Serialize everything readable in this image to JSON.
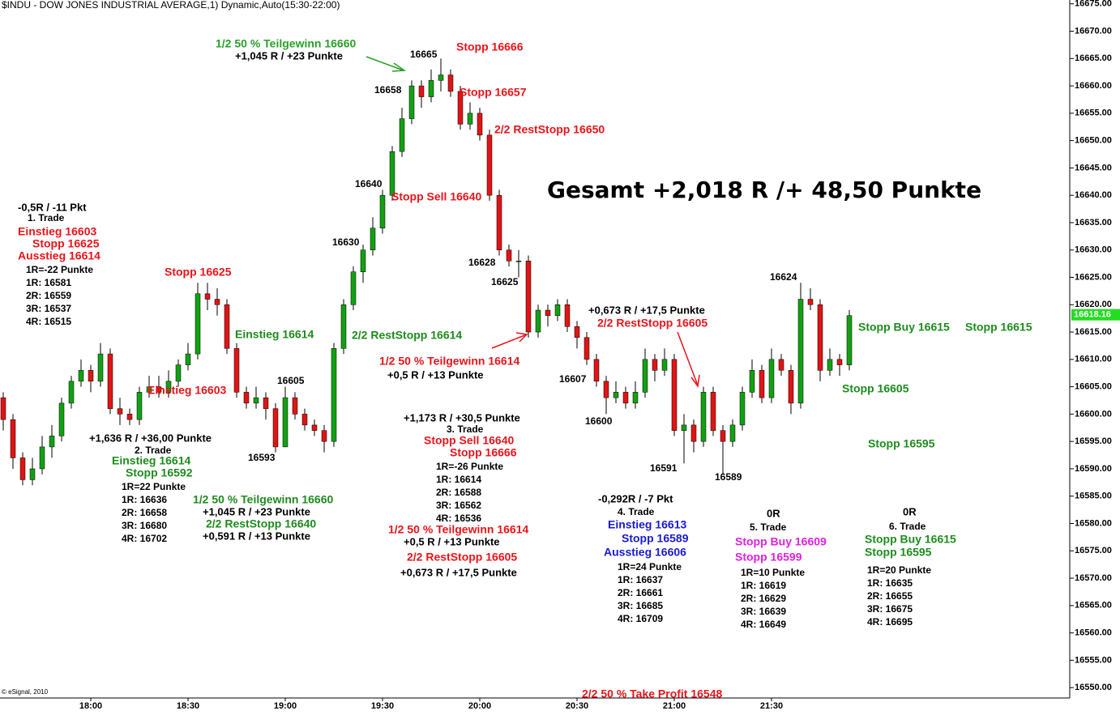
{
  "chart_data": {
    "type": "candlestick",
    "title": "$INDU - DOW JONES INDUSTRIAL AVERAGE,1) Dynamic,Auto(15:30-22:00)",
    "copyright": "© eSignal, 2010",
    "up_color": "#12a012",
    "down_color": "#e01414",
    "xlim": [
      "17:32",
      "23:02"
    ],
    "xticks": [
      "18:00",
      "18:30",
      "19:00",
      "19:30",
      "20:00",
      "20:30",
      "21:00",
      "21:30"
    ],
    "ylim": [
      16548.1,
      16675.7
    ],
    "yticks": [
      {
        "value": 16550,
        "label": "16550.00"
      },
      {
        "value": 16555,
        "label": "16555.00"
      },
      {
        "value": 16560,
        "label": "16560.00"
      },
      {
        "value": 16565,
        "label": "16565.00"
      },
      {
        "value": 16570,
        "label": "16570.00"
      },
      {
        "value": 16575,
        "label": "16575.00"
      },
      {
        "value": 16580,
        "label": "16580.00"
      },
      {
        "value": 16585,
        "label": "16585.00"
      },
      {
        "value": 16590,
        "label": "16590.00"
      },
      {
        "value": 16595,
        "label": "16595.00"
      },
      {
        "value": 16600,
        "label": "16600.00"
      },
      {
        "value": 16605,
        "label": "16605.00"
      },
      {
        "value": 16610,
        "label": "16610.00"
      },
      {
        "value": 16615,
        "label": "16615.00"
      },
      {
        "value": 16620,
        "label": "16620.00"
      },
      {
        "value": 16625,
        "label": "16625.00"
      },
      {
        "value": 16630,
        "label": "16630.00"
      },
      {
        "value": 16635,
        "label": "16635.00"
      },
      {
        "value": 16640,
        "label": "16640.00"
      },
      {
        "value": 16645,
        "label": "16645.00"
      },
      {
        "value": 16650,
        "label": "16650.00"
      },
      {
        "value": 16655,
        "label": "16655.00"
      },
      {
        "value": 16660,
        "label": "16660.00"
      },
      {
        "value": 16665,
        "label": "16665.00"
      },
      {
        "value": 16670,
        "label": "16670.00"
      },
      {
        "value": 16675,
        "label": "16675.00"
      }
    ],
    "last_price": 16618.16,
    "last_price_color": "#22dd22",
    "x": [
      "17:33",
      "17:36",
      "17:39",
      "17:42",
      "17:45",
      "17:48",
      "17:51",
      "17:54",
      "17:57",
      "18:00",
      "18:03",
      "18:06",
      "18:09",
      "18:12",
      "18:15",
      "18:18",
      "18:21",
      "18:24",
      "18:27",
      "18:30",
      "18:33",
      "18:36",
      "18:39",
      "18:42",
      "18:45",
      "18:48",
      "18:51",
      "18:54",
      "18:57",
      "19:00",
      "19:03",
      "19:06",
      "19:09",
      "19:12",
      "19:15",
      "19:18",
      "19:21",
      "19:24",
      "19:27",
      "19:30",
      "19:33",
      "19:36",
      "19:39",
      "19:42",
      "19:45",
      "19:48",
      "19:51",
      "19:54",
      "19:57",
      "20:00",
      "20:03",
      "20:06",
      "20:09",
      "20:12",
      "20:15",
      "20:18",
      "20:21",
      "20:24",
      "20:27",
      "20:30",
      "20:33",
      "20:36",
      "20:39",
      "20:42",
      "20:45",
      "20:48",
      "20:51",
      "20:54",
      "20:57",
      "21:00",
      "21:03",
      "21:06",
      "21:09",
      "21:12",
      "21:15",
      "21:18",
      "21:21",
      "21:24",
      "21:27",
      "21:30",
      "21:33",
      "21:36",
      "21:39",
      "21:42",
      "21:45",
      "21:48",
      "21:51",
      "21:54"
    ],
    "ohlc": [
      [
        16603,
        16604,
        16597,
        16599
      ],
      [
        16599,
        16600,
        16590,
        16592
      ],
      [
        16592,
        16593,
        16587,
        16588
      ],
      [
        16588,
        16592,
        16587,
        16590
      ],
      [
        16590,
        16596,
        16589,
        16594
      ],
      [
        16594,
        16598,
        16592,
        16596
      ],
      [
        16596,
        16603,
        16595,
        16602
      ],
      [
        16602,
        16607,
        16601,
        16606
      ],
      [
        16606,
        16610,
        16605,
        16608
      ],
      [
        16608,
        16609,
        16604,
        16606
      ],
      [
        16606,
        16613,
        16605,
        16611
      ],
      [
        16611,
        16612,
        16600,
        16601
      ],
      [
        16601,
        16603,
        16598,
        16600
      ],
      [
        16600,
        16601,
        16598,
        16599
      ],
      [
        16599,
        16605,
        16598,
        16604
      ],
      [
        16604,
        16607,
        16603,
        16605
      ],
      [
        16605,
        16607,
        16603,
        16604
      ],
      [
        16604,
        16608,
        16603,
        16606
      ],
      [
        16606,
        16610,
        16605,
        16609
      ],
      [
        16609,
        16613,
        16608,
        16611
      ],
      [
        16611,
        16624,
        16610,
        16622
      ],
      [
        16622,
        16624,
        16619,
        16621
      ],
      [
        16621,
        16623,
        16618,
        16620
      ],
      [
        16620,
        16621,
        16611,
        16612
      ],
      [
        16612,
        16613,
        16603,
        16604
      ],
      [
        16604,
        16605,
        16601,
        16602
      ],
      [
        16602,
        16605,
        16601,
        16603
      ],
      [
        16603,
        16604,
        16599,
        16601
      ],
      [
        16601,
        16602,
        16593,
        16594
      ],
      [
        16594,
        16605,
        16594,
        16603
      ],
      [
        16603,
        16604,
        16599,
        16600
      ],
      [
        16600,
        16601,
        16597,
        16598
      ],
      [
        16598,
        16599,
        16596,
        16597
      ],
      [
        16597,
        16598,
        16593,
        16595
      ],
      [
        16595,
        16613,
        16594,
        16612
      ],
      [
        16612,
        16621,
        16611,
        16620
      ],
      [
        16620,
        16627,
        16619,
        16626
      ],
      [
        16626,
        16631,
        16624,
        16630
      ],
      [
        16630,
        16636,
        16629,
        16634
      ],
      [
        16634,
        16641,
        16633,
        16640
      ],
      [
        16640,
        16649,
        16639,
        16648
      ],
      [
        16648,
        16656,
        16647,
        16654
      ],
      [
        16654,
        16661,
        16653,
        16660
      ],
      [
        16660,
        16661,
        16656,
        16658
      ],
      [
        16658,
        16663,
        16657,
        16661
      ],
      [
        16661,
        16665,
        16659,
        16662
      ],
      [
        16662,
        16663,
        16658,
        16659
      ],
      [
        16659,
        16660,
        16652,
        16653
      ],
      [
        16653,
        16657,
        16652,
        16655
      ],
      [
        16655,
        16656,
        16650,
        16651
      ],
      [
        16651,
        16652,
        16639,
        16640
      ],
      [
        16640,
        16641,
        16629,
        16630
      ],
      [
        16630,
        16631,
        16627,
        16628
      ],
      [
        16628,
        16630,
        16625,
        16628
      ],
      [
        16628,
        16629,
        16614,
        16615
      ],
      [
        16615,
        16620,
        16614,
        16619
      ],
      [
        16619,
        16620,
        16616,
        16618
      ],
      [
        16618,
        16621,
        16617,
        16620
      ],
      [
        16620,
        16621,
        16615,
        16616
      ],
      [
        16616,
        16617,
        16612,
        16614
      ],
      [
        16614,
        16615,
        16609,
        16610
      ],
      [
        16610,
        16611,
        16605,
        16606
      ],
      [
        16606,
        16607,
        16600,
        16603
      ],
      [
        16603,
        16606,
        16602,
        16604
      ],
      [
        16604,
        16605,
        16601,
        16602
      ],
      [
        16602,
        16606,
        16601,
        16604
      ],
      [
        16604,
        16612,
        16603,
        16610
      ],
      [
        16610,
        16611,
        16606,
        16608
      ],
      [
        16608,
        16612,
        16607,
        16610
      ],
      [
        16610,
        16611,
        16596,
        16597
      ],
      [
        16597,
        16600,
        16591,
        16598
      ],
      [
        16598,
        16599,
        16593,
        16595
      ],
      [
        16595,
        16605,
        16594,
        16604
      ],
      [
        16604,
        16605,
        16596,
        16597
      ],
      [
        16597,
        16598,
        16589,
        16595
      ],
      [
        16595,
        16599,
        16594,
        16598
      ],
      [
        16598,
        16605,
        16597,
        16604
      ],
      [
        16604,
        16610,
        16603,
        16608
      ],
      [
        16608,
        16609,
        16602,
        16603
      ],
      [
        16603,
        16612,
        16602,
        16610
      ],
      [
        16610,
        16611,
        16607,
        16608
      ],
      [
        16608,
        16609,
        16600,
        16602
      ],
      [
        16602,
        16624,
        16601,
        16621
      ],
      [
        16621,
        16623,
        16619,
        16620
      ],
      [
        16620,
        16621,
        16606,
        16608
      ],
      [
        16608,
        16612,
        16607,
        16610
      ],
      [
        16610,
        16611,
        16607,
        16609
      ],
      [
        16609,
        16619,
        16608,
        16618
      ]
    ],
    "annotations": [
      {
        "text": "-0,5R / -11 Pkt",
        "color": "#000000"
      },
      {
        "text": "1. Trade",
        "color": "#000000"
      },
      {
        "text": "Einstieg 16603",
        "color": "#e8141a"
      },
      {
        "text": "Stopp 16625",
        "color": "#e8141a"
      },
      {
        "text": "Ausstieg 16614",
        "color": "#e8141a"
      },
      {
        "text": "1R=-22 Punkte",
        "color": "#000000"
      },
      {
        "text": "1R: 16581",
        "color": "#000000"
      },
      {
        "text": "2R: 16559",
        "color": "#000000"
      },
      {
        "text": "3R: 16537",
        "color": "#000000"
      },
      {
        "text": "4R: 16515",
        "color": "#000000"
      },
      {
        "text": "Stopp 16625",
        "color": "#e8141a"
      },
      {
        "text": "Einstieg 16614",
        "color": "#1e8c1e"
      },
      {
        "text": "Einstieg 16603",
        "color": "#e8141a"
      },
      {
        "text": "16605",
        "color": "#000000"
      },
      {
        "text": "16593",
        "color": "#000000"
      },
      {
        "text": "+1,636 R / +36,00 Punkte",
        "color": "#000000"
      },
      {
        "text": "2. Trade",
        "color": "#000000"
      },
      {
        "text": "Einstieg 16614",
        "color": "#1e8c1e"
      },
      {
        "text": "Stopp 16592",
        "color": "#1e8c1e"
      },
      {
        "text": "1R=22 Punkte",
        "color": "#000000"
      },
      {
        "text": "1R: 16636",
        "color": "#000000"
      },
      {
        "text": "2R: 16658",
        "color": "#000000"
      },
      {
        "text": "3R: 16680",
        "color": "#000000"
      },
      {
        "text": "4R: 16702",
        "color": "#000000"
      },
      {
        "text": "1/2 50 % Teilgewinn 16660",
        "color": "#1e8c1e"
      },
      {
        "text": "+1,045 R / +23 Punkte",
        "color": "#000000"
      },
      {
        "text": "2/2 RestStopp 16640",
        "color": "#1e8c1e"
      },
      {
        "text": "+0,591 R / +13 Punkte",
        "color": "#000000"
      },
      {
        "text": "1/2 50 % Teilgewinn 16660",
        "color": "#2aa02a"
      },
      {
        "text": "+1,045 R / +23 Punkte",
        "color": "#000000"
      },
      {
        "text": "16665",
        "color": "#000000"
      },
      {
        "text": "16658",
        "color": "#000000"
      },
      {
        "text": "Stopp 16666",
        "color": "#e8141a"
      },
      {
        "text": "Stopp 16657",
        "color": "#e8141a"
      },
      {
        "text": "2/2 RestStopp 16650",
        "color": "#e8141a"
      },
      {
        "text": "16640",
        "color": "#000000"
      },
      {
        "text": "Stopp Sell 16640",
        "color": "#e8141a"
      },
      {
        "text": "16630",
        "color": "#000000"
      },
      {
        "text": "16628",
        "color": "#000000"
      },
      {
        "text": "16625",
        "color": "#000000"
      },
      {
        "text": "2/2 RestStopp 16614",
        "color": "#1e8c1e"
      },
      {
        "text": "1/2 50 % Teilgewinn 16614",
        "color": "#e8141a"
      },
      {
        "text": "+0,5 R / +13 Punkte",
        "color": "#000000"
      },
      {
        "text": "Gesamt +2,018 R /+ 48,50 Punkte",
        "color": "#000000"
      },
      {
        "text": "+0,673 R / +17,5 Punkte",
        "color": "#000000"
      },
      {
        "text": "2/2 RestStopp 16605",
        "color": "#e8141a"
      },
      {
        "text": "16607",
        "color": "#000000"
      },
      {
        "text": "16600",
        "color": "#000000"
      },
      {
        "text": "16591",
        "color": "#000000"
      },
      {
        "text": "16589",
        "color": "#000000"
      },
      {
        "text": "16624",
        "color": "#000000"
      },
      {
        "text": "Stopp Buy 16615",
        "color": "#1e8c1e"
      },
      {
        "text": "Stopp 16615",
        "color": "#1e8c1e"
      },
      {
        "text": "Stopp 16605",
        "color": "#1e8c1e"
      },
      {
        "text": "Stopp 16595",
        "color": "#1e8c1e"
      },
      {
        "text": "+1,173 R / +30,5 Punkte",
        "color": "#000000"
      },
      {
        "text": "3. Trade",
        "color": "#000000"
      },
      {
        "text": "Stopp Sell 16640",
        "color": "#e8141a"
      },
      {
        "text": "Stopp 16666",
        "color": "#e8141a"
      },
      {
        "text": "1R=-26 Punkte",
        "color": "#000000"
      },
      {
        "text": "1R: 16614",
        "color": "#000000"
      },
      {
        "text": "2R: 16588",
        "color": "#000000"
      },
      {
        "text": "3R: 16562",
        "color": "#000000"
      },
      {
        "text": "4R: 16536",
        "color": "#000000"
      },
      {
        "text": "1/2 50 % Teilgewinn 16614",
        "color": "#e8141a"
      },
      {
        "text": "+0,5 R / +13 Punkte",
        "color": "#000000"
      },
      {
        "text": "2/2 RestStopp 16605",
        "color": "#e8141a"
      },
      {
        "text": "+0,673 R / +17,5 Punkte",
        "color": "#000000"
      },
      {
        "text": "-0,292R / -7 Pkt",
        "color": "#000000"
      },
      {
        "text": "4. Trade",
        "color": "#000000"
      },
      {
        "text": "Einstieg 16613",
        "color": "#1a1ad0"
      },
      {
        "text": "Stopp 16589",
        "color": "#1a1ad0"
      },
      {
        "text": "Ausstieg 16606",
        "color": "#1a1ad0"
      },
      {
        "text": "1R=24 Punkte",
        "color": "#000000"
      },
      {
        "text": "1R: 16637",
        "color": "#000000"
      },
      {
        "text": "2R: 16661",
        "color": "#000000"
      },
      {
        "text": "3R: 16685",
        "color": "#000000"
      },
      {
        "text": "4R: 16709",
        "color": "#000000"
      },
      {
        "text": "0R",
        "color": "#000000"
      },
      {
        "text": "5. Trade",
        "color": "#000000"
      },
      {
        "text": "Stopp Buy 16609",
        "color": "#e020e0"
      },
      {
        "text": "Stopp 16599",
        "color": "#e020e0"
      },
      {
        "text": "1R=10 Punkte",
        "color": "#000000"
      },
      {
        "text": "1R: 16619",
        "color": "#000000"
      },
      {
        "text": "2R: 16629",
        "color": "#000000"
      },
      {
        "text": "3R: 16639",
        "color": "#000000"
      },
      {
        "text": "4R: 16649",
        "color": "#000000"
      },
      {
        "text": "0R",
        "color": "#000000"
      },
      {
        "text": "6. Trade",
        "color": "#000000"
      },
      {
        "text": "Stopp Buy 16615",
        "color": "#1e8c1e"
      },
      {
        "text": "Stopp 16595",
        "color": "#1e8c1e"
      },
      {
        "text": "1R=20 Punkte",
        "color": "#000000"
      },
      {
        "text": "1R: 16635",
        "color": "#000000"
      },
      {
        "text": "2R: 16655",
        "color": "#000000"
      },
      {
        "text": "3R: 16675",
        "color": "#000000"
      },
      {
        "text": "4R: 16695",
        "color": "#000000"
      },
      {
        "text": "2/2 50 % Take Profit 16548",
        "color": "#e8141a"
      }
    ]
  }
}
